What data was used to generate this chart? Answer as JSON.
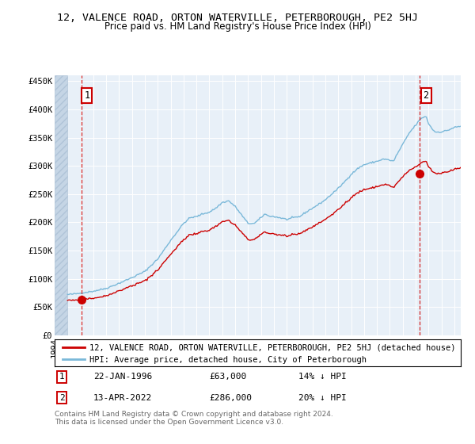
{
  "title_line1": "12, VALENCE ROAD, ORTON WATERVILLE, PETERBOROUGH, PE2 5HJ",
  "title_line2": "Price paid vs. HM Land Registry's House Price Index (HPI)",
  "ylabel_ticks": [
    "£0",
    "£50K",
    "£100K",
    "£150K",
    "£200K",
    "£250K",
    "£300K",
    "£350K",
    "£400K",
    "£450K"
  ],
  "ytick_vals": [
    0,
    50000,
    100000,
    150000,
    200000,
    250000,
    300000,
    350000,
    400000,
    450000
  ],
  "ylim": [
    0,
    460000
  ],
  "xlim_start": 1994.0,
  "xlim_end": 2025.5,
  "hpi_color": "#7ab8d9",
  "price_color": "#cc0000",
  "dashed_vline_color": "#cc0000",
  "plot_bg": "#e8f0f8",
  "legend_label_red": "12, VALENCE ROAD, ORTON WATERVILLE, PETERBOROUGH, PE2 5HJ (detached house)",
  "legend_label_blue": "HPI: Average price, detached house, City of Peterborough",
  "point1_date": "22-JAN-1996",
  "point1_price": 63000,
  "point1_year": 1996.06,
  "point2_date": "13-APR-2022",
  "point2_price": 286000,
  "point2_year": 2022.28,
  "point1_hpi_rel": "14% ↓ HPI",
  "point2_hpi_rel": "20% ↓ HPI",
  "footer": "Contains HM Land Registry data © Crown copyright and database right 2024.\nThis data is licensed under the Open Government Licence v3.0.",
  "title_fontsize": 9.5,
  "subtitle_fontsize": 8.5,
  "tick_fontsize": 7.5,
  "legend_fontsize": 7.5,
  "table_fontsize": 8,
  "footer_fontsize": 6.5
}
